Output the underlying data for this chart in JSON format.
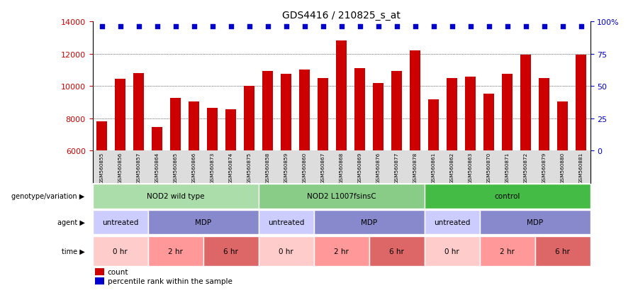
{
  "title": "GDS4416 / 210825_s_at",
  "samples": [
    "GSM560855",
    "GSM560856",
    "GSM560857",
    "GSM560864",
    "GSM560865",
    "GSM560866",
    "GSM560873",
    "GSM560874",
    "GSM560875",
    "GSM560858",
    "GSM560859",
    "GSM560860",
    "GSM560867",
    "GSM560868",
    "GSM560869",
    "GSM560876",
    "GSM560877",
    "GSM560878",
    "GSM560861",
    "GSM560862",
    "GSM560863",
    "GSM560870",
    "GSM560871",
    "GSM560872",
    "GSM560879",
    "GSM560880",
    "GSM560881"
  ],
  "counts": [
    7800,
    10450,
    10800,
    7450,
    9250,
    9050,
    8650,
    8550,
    10000,
    10950,
    10750,
    11000,
    10500,
    12800,
    11100,
    10200,
    10950,
    12200,
    9200,
    10500,
    10600,
    9550,
    10750,
    11950,
    10500,
    9050,
    11950
  ],
  "bar_color": "#cc0000",
  "dot_color": "#0000cc",
  "ymin": 6000,
  "ymax": 14000,
  "yticks": [
    6000,
    8000,
    10000,
    12000,
    14000
  ],
  "right_yticks": [
    0,
    25,
    50,
    75,
    100
  ],
  "genotype_groups": [
    {
      "label": "NOD2 wild type",
      "start": 0,
      "end": 9,
      "color": "#aaddaa"
    },
    {
      "label": "NOD2 L1007fsinsC",
      "start": 9,
      "end": 18,
      "color": "#88cc88"
    },
    {
      "label": "control",
      "start": 18,
      "end": 27,
      "color": "#44bb44"
    }
  ],
  "agent_groups": [
    {
      "label": "untreated",
      "start": 0,
      "end": 3,
      "color": "#ccccff"
    },
    {
      "label": "MDP",
      "start": 3,
      "end": 9,
      "color": "#8888cc"
    },
    {
      "label": "untreated",
      "start": 9,
      "end": 12,
      "color": "#ccccff"
    },
    {
      "label": "MDP",
      "start": 12,
      "end": 18,
      "color": "#8888cc"
    },
    {
      "label": "untreated",
      "start": 18,
      "end": 21,
      "color": "#ccccff"
    },
    {
      "label": "MDP",
      "start": 21,
      "end": 27,
      "color": "#8888cc"
    }
  ],
  "time_groups": [
    {
      "label": "0 hr",
      "start": 0,
      "end": 3,
      "color": "#ffcccc"
    },
    {
      "label": "2 hr",
      "start": 3,
      "end": 6,
      "color": "#ff9999"
    },
    {
      "label": "6 hr",
      "start": 6,
      "end": 9,
      "color": "#dd6666"
    },
    {
      "label": "0 hr",
      "start": 9,
      "end": 12,
      "color": "#ffcccc"
    },
    {
      "label": "2 hr",
      "start": 12,
      "end": 15,
      "color": "#ff9999"
    },
    {
      "label": "6 hr",
      "start": 15,
      "end": 18,
      "color": "#dd6666"
    },
    {
      "label": "0 hr",
      "start": 18,
      "end": 21,
      "color": "#ffcccc"
    },
    {
      "label": "2 hr",
      "start": 21,
      "end": 24,
      "color": "#ff9999"
    },
    {
      "label": "6 hr",
      "start": 24,
      "end": 27,
      "color": "#dd6666"
    }
  ],
  "row_labels": [
    "genotype/variation",
    "agent",
    "time"
  ],
  "legend_items": [
    {
      "color": "#cc0000",
      "label": "count"
    },
    {
      "color": "#0000cc",
      "label": "percentile rank within the sample"
    }
  ]
}
